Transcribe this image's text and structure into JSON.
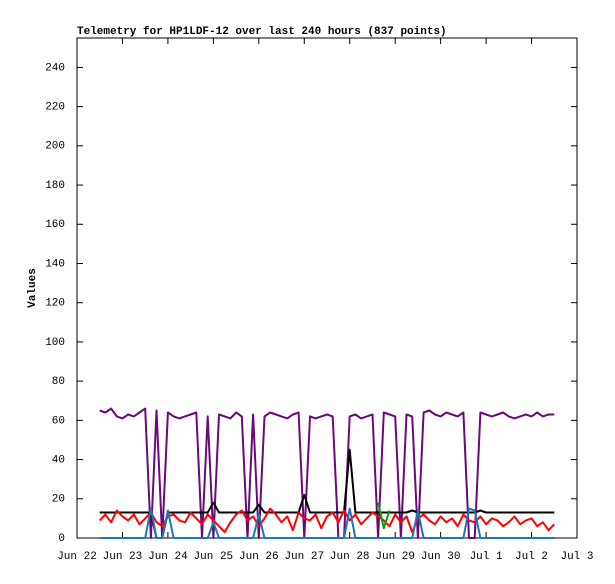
{
  "chart_data": {
    "type": "line",
    "title": "Telemetry for HP1LDF-12 over last 240 hours (837 points)",
    "y_label": "Values",
    "x": [
      22.5,
      22.625,
      22.75,
      22.875,
      23,
      23.125,
      23.25,
      23.375,
      23.5,
      23.625,
      23.75,
      23.875,
      24,
      24.125,
      24.25,
      24.375,
      24.5,
      24.625,
      24.75,
      24.875,
      25,
      25.125,
      25.25,
      25.375,
      25.5,
      25.625,
      25.75,
      25.875,
      26,
      26.125,
      26.25,
      26.375,
      26.5,
      26.625,
      26.75,
      26.875,
      27,
      27.125,
      27.25,
      27.375,
      27.5,
      27.625,
      27.75,
      27.875,
      28,
      28.125,
      28.25,
      28.375,
      28.5,
      28.625,
      28.75,
      28.875,
      29,
      29.125,
      29.25,
      29.375,
      29.5,
      29.625,
      29.75,
      29.875,
      30,
      30.125,
      30.25,
      30.375,
      30.5,
      30.625,
      30.75,
      30.875,
      31,
      31.125,
      31.25,
      31.375,
      31.5,
      31.625,
      31.75,
      31.875,
      32,
      32.125,
      32.25,
      32.375,
      32.5
    ],
    "series": [
      {
        "color": "#6a0a7a",
        "values": [
          65,
          64,
          66,
          62,
          61,
          63,
          62,
          64,
          66,
          0,
          65,
          0,
          64,
          62,
          61,
          62,
          63,
          64,
          0,
          62,
          0,
          63,
          62,
          61,
          64,
          62,
          0,
          63,
          0,
          62,
          64,
          63,
          62,
          61,
          63,
          64,
          0,
          62,
          61,
          62,
          63,
          62,
          0,
          0,
          62,
          63,
          61,
          62,
          63,
          0,
          64,
          63,
          62,
          0,
          63,
          62,
          0,
          64,
          65,
          63,
          62,
          64,
          63,
          62,
          64,
          0,
          0,
          64,
          63,
          62,
          63,
          64,
          62,
          61,
          62,
          63,
          62,
          64,
          62,
          63,
          63
        ]
      },
      {
        "color": "#000000",
        "values": [
          13,
          13,
          13,
          13,
          13,
          13,
          13,
          13,
          13,
          13,
          0,
          0,
          13,
          13,
          13,
          13,
          13,
          13,
          13,
          13,
          18,
          13,
          13,
          13,
          13,
          13,
          13,
          13,
          17,
          13,
          13,
          13,
          13,
          13,
          13,
          13,
          22,
          13,
          13,
          13,
          13,
          13,
          13,
          13,
          45,
          13,
          13,
          13,
          13,
          13,
          13,
          13,
          13,
          13,
          13,
          14,
          13,
          13,
          13,
          13,
          13,
          13,
          13,
          13,
          13,
          13,
          13,
          14,
          13,
          13,
          13,
          13,
          13,
          13,
          13,
          13,
          13,
          13,
          13,
          13,
          13
        ]
      },
      {
        "color": "#ff0000",
        "values": [
          9,
          12,
          8,
          14,
          11,
          9,
          12,
          7,
          10,
          13,
          8,
          6,
          11,
          12,
          9,
          8,
          13,
          10,
          7,
          12,
          9,
          6,
          3,
          8,
          12,
          14,
          9,
          11,
          6,
          10,
          15,
          12,
          8,
          11,
          4,
          13,
          10,
          9,
          12,
          5,
          11,
          13,
          8,
          14,
          9,
          12,
          7,
          10,
          13,
          11,
          9,
          6,
          12,
          8,
          11,
          3,
          10,
          12,
          9,
          7,
          11,
          8,
          10,
          6,
          12,
          9,
          8,
          11,
          7,
          10,
          9,
          6,
          8,
          11,
          7,
          9,
          10,
          6,
          8,
          4,
          7
        ]
      },
      {
        "color": "#00a000",
        "values": [
          null,
          null,
          null,
          null,
          null,
          null,
          null,
          null,
          null,
          null,
          null,
          null,
          null,
          null,
          null,
          null,
          null,
          null,
          null,
          null,
          null,
          null,
          null,
          null,
          null,
          null,
          null,
          null,
          null,
          null,
          null,
          null,
          null,
          null,
          null,
          null,
          null,
          null,
          null,
          null,
          null,
          null,
          null,
          null,
          null,
          null,
          null,
          null,
          null,
          18,
          5,
          14,
          null,
          null,
          null,
          null,
          null,
          null,
          null,
          null,
          null,
          null,
          null,
          null,
          null,
          null,
          null,
          null,
          null,
          null,
          null,
          null,
          null,
          null,
          null,
          null,
          null,
          null,
          null,
          null,
          null
        ]
      },
      {
        "color": "#1f77b4",
        "values": [
          0,
          0,
          0,
          0,
          0,
          0,
          0,
          0,
          0,
          15,
          0,
          0,
          14,
          0,
          0,
          0,
          0,
          0,
          0,
          0,
          8,
          0,
          0,
          0,
          0,
          0,
          0,
          0,
          12,
          0,
          0,
          0,
          0,
          0,
          0,
          0,
          0,
          0,
          0,
          0,
          0,
          0,
          0,
          0,
          15,
          0,
          0,
          0,
          0,
          0,
          0,
          0,
          0,
          0,
          0,
          0,
          14,
          0,
          0,
          0,
          0,
          0,
          0,
          0,
          0,
          15,
          14,
          0,
          0,
          0,
          0,
          0,
          0,
          0,
          0,
          0,
          0,
          0,
          0,
          0,
          0
        ]
      }
    ],
    "xlim": [
      22,
      33
    ],
    "xticks": [
      {
        "value": 22,
        "label": "Jun 22"
      },
      {
        "value": 23,
        "label": "Jun 23"
      },
      {
        "value": 24,
        "label": "Jun 24"
      },
      {
        "value": 25,
        "label": "Jun 25"
      },
      {
        "value": 26,
        "label": "Jun 26"
      },
      {
        "value": 27,
        "label": "Jun 27"
      },
      {
        "value": 28,
        "label": "Jun 28"
      },
      {
        "value": 29,
        "label": "Jun 29"
      },
      {
        "value": 30,
        "label": "Jun 30"
      },
      {
        "value": 31,
        "label": "Jul 1"
      },
      {
        "value": 32,
        "label": "Jul 2"
      },
      {
        "value": 33,
        "label": "Jul 3"
      }
    ],
    "ylim": [
      0,
      255
    ],
    "yticks": [
      0,
      20,
      40,
      60,
      80,
      100,
      120,
      140,
      160,
      180,
      200,
      220,
      240
    ],
    "grid": false
  }
}
